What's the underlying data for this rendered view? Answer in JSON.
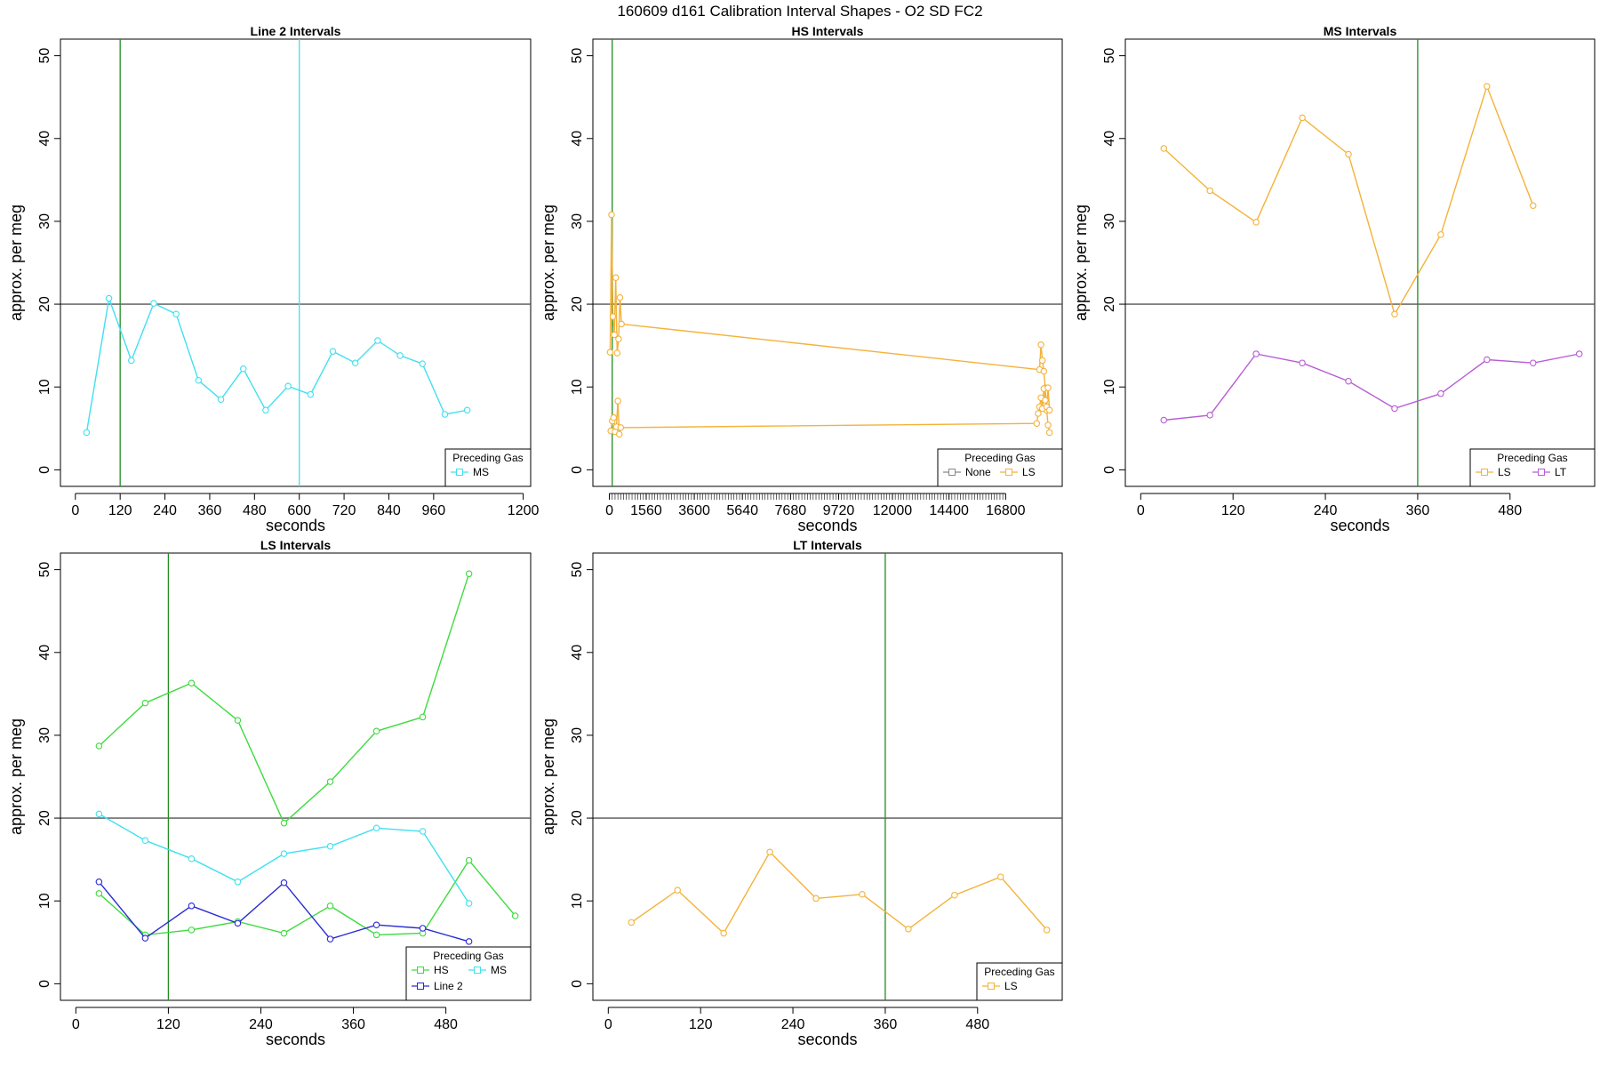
{
  "figure_title": "160609   d161   Calibration Interval Shapes - O2 SD FC2",
  "chart_data": [
    {
      "type": "line",
      "title": "Line 2 Intervals",
      "xlabel": "seconds",
      "ylabel": "approx. per meg",
      "xlim": [
        -40,
        1220
      ],
      "ylim": [
        -2,
        52
      ],
      "xticks": [
        0,
        120,
        240,
        360,
        480,
        600,
        720,
        840,
        960,
        1200
      ],
      "yticks": [
        0,
        10,
        20,
        30,
        40,
        50
      ],
      "hlines": [
        {
          "value": 20,
          "color": "#555555"
        }
      ],
      "vlines": [
        {
          "value": 120,
          "color": "#228B22"
        },
        {
          "value": 600,
          "color": "#40E0F0"
        }
      ],
      "legend": {
        "title": "Preceding Gas",
        "entries": [
          {
            "name": "MS",
            "color": "#40E0F0"
          }
        ]
      },
      "series": [
        {
          "name": "MS",
          "color": "#40E0F0",
          "points": [
            [
              30,
              4.5
            ],
            [
              90,
              20.7
            ],
            [
              150,
              13.2
            ],
            [
              210,
              20.1
            ],
            [
              270,
              18.8
            ],
            [
              330,
              10.8
            ],
            [
              390,
              8.5
            ],
            [
              450,
              12.2
            ],
            [
              510,
              7.2
            ],
            [
              570,
              10.1
            ],
            [
              630,
              9.1
            ],
            [
              690,
              14.3
            ],
            [
              750,
              12.9
            ],
            [
              810,
              15.6
            ],
            [
              870,
              13.8
            ],
            [
              930,
              12.8
            ],
            [
              990,
              6.7
            ],
            [
              1050,
              7.2
            ]
          ]
        }
      ]
    },
    {
      "type": "line",
      "title": "HS Intervals",
      "xlabel": "seconds",
      "ylabel": "approx. per meg",
      "xlim": [
        -700,
        19200
      ],
      "ylim": [
        -2,
        52
      ],
      "xticks": [
        0,
        1560,
        3600,
        5640,
        7680,
        9720,
        12000,
        14400,
        16800
      ],
      "minor_xtick_step": 120,
      "yticks": [
        0,
        10,
        20,
        30,
        40,
        50
      ],
      "hlines": [
        {
          "value": 20,
          "color": "#555555"
        }
      ],
      "vlines": [
        {
          "value": 120,
          "color": "#228B22"
        }
      ],
      "legend": {
        "title": "Preceding Gas",
        "entries": [
          {
            "name": "None",
            "color": "#888888"
          },
          {
            "name": "LS",
            "color": "#F4B23A"
          }
        ]
      },
      "series": [
        {
          "name": "LS",
          "color": "#F4B23A",
          "points": [
            [
              30,
              14.2
            ],
            [
              90,
              30.8
            ],
            [
              150,
              18.5
            ],
            [
              210,
              16.3
            ],
            [
              270,
              23.2
            ],
            [
              330,
              14.1
            ],
            [
              390,
              15.8
            ],
            [
              450,
              20.8
            ],
            [
              510,
              17.6
            ],
            [
              18240,
              12.1
            ],
            [
              18300,
              15.1
            ],
            [
              18360,
              13.2
            ],
            [
              18420,
              11.9
            ],
            [
              18480,
              9.9
            ],
            [
              18540,
              7.2
            ],
            [
              18600,
              5.4
            ],
            [
              18660,
              4.5
            ]
          ]
        },
        {
          "name": "LS",
          "color": "#F4B23A",
          "points": [
            [
              60,
              4.7
            ],
            [
              120,
              5.9
            ],
            [
              180,
              6.3
            ],
            [
              240,
              4.6
            ],
            [
              300,
              5.2
            ],
            [
              360,
              8.3
            ],
            [
              420,
              4.3
            ],
            [
              480,
              5.1
            ],
            [
              18120,
              5.6
            ],
            [
              18180,
              6.8
            ],
            [
              18240,
              7.6
            ],
            [
              18300,
              8.7
            ],
            [
              18360,
              7.4
            ],
            [
              18420,
              9.8
            ],
            [
              18480,
              8.4
            ],
            [
              18540,
              7.6
            ],
            [
              18600,
              9.9
            ],
            [
              18660,
              7.2
            ]
          ]
        }
      ]
    },
    {
      "type": "line",
      "title": "MS Intervals",
      "xlabel": "seconds",
      "ylabel": "approx. per meg",
      "xlim": [
        -20,
        590
      ],
      "ylim": [
        -2,
        52
      ],
      "xticks": [
        0,
        120,
        240,
        360,
        480
      ],
      "yticks": [
        0,
        10,
        20,
        30,
        40,
        50
      ],
      "hlines": [
        {
          "value": 20,
          "color": "#555555"
        }
      ],
      "vlines": [
        {
          "value": 360,
          "color": "#228B22"
        }
      ],
      "legend": {
        "title": "Preceding Gas",
        "entries": [
          {
            "name": "LS",
            "color": "#F4B23A"
          },
          {
            "name": "LT",
            "color": "#B85CD6"
          }
        ]
      },
      "series": [
        {
          "name": "LS",
          "color": "#F4B23A",
          "points": [
            [
              30,
              38.8
            ],
            [
              90,
              33.7
            ],
            [
              150,
              29.9
            ],
            [
              210,
              42.5
            ],
            [
              270,
              38.1
            ],
            [
              330,
              18.8
            ],
            [
              390,
              28.4
            ],
            [
              450,
              46.3
            ],
            [
              510,
              31.9
            ]
          ]
        },
        {
          "name": "LT",
          "color": "#B85CD6",
          "points": [
            [
              30,
              6.0
            ],
            [
              90,
              6.6
            ],
            [
              150,
              14.0
            ],
            [
              210,
              12.9
            ],
            [
              270,
              10.7
            ],
            [
              330,
              7.4
            ],
            [
              390,
              9.2
            ],
            [
              450,
              13.3
            ],
            [
              510,
              12.9
            ],
            [
              570,
              14.0
            ]
          ]
        }
      ]
    },
    {
      "type": "line",
      "title": "LS Intervals",
      "xlabel": "seconds",
      "ylabel": "approx. per meg",
      "xlim": [
        -20,
        590
      ],
      "ylim": [
        -2,
        52
      ],
      "xticks": [
        0,
        120,
        240,
        360,
        480
      ],
      "yticks": [
        0,
        10,
        20,
        30,
        40,
        50
      ],
      "hlines": [
        {
          "value": 20,
          "color": "#555555"
        }
      ],
      "vlines": [
        {
          "value": 120,
          "color": "#228B22"
        }
      ],
      "legend": {
        "title": "Preceding Gas",
        "columns": 2,
        "entries": [
          {
            "name": "HS",
            "color": "#3EDB3E"
          },
          {
            "name": "Line 2",
            "color": "#2B2BD6"
          },
          {
            "name": "MS",
            "color": "#40E0F0"
          }
        ]
      },
      "series": [
        {
          "name": "HS",
          "color": "#3EDB3E",
          "points": [
            [
              30,
              28.7
            ],
            [
              90,
              33.9
            ],
            [
              150,
              36.3
            ],
            [
              210,
              31.8
            ],
            [
              270,
              19.4
            ],
            [
              330,
              24.4
            ],
            [
              390,
              30.5
            ],
            [
              450,
              32.2
            ],
            [
              510,
              49.5
            ]
          ]
        },
        {
          "name": "HS",
          "color": "#3EDB3E",
          "points": [
            [
              30,
              10.9
            ],
            [
              90,
              5.9
            ],
            [
              150,
              6.5
            ],
            [
              210,
              7.5
            ],
            [
              270,
              6.1
            ],
            [
              330,
              9.4
            ],
            [
              390,
              5.9
            ],
            [
              450,
              6.1
            ],
            [
              510,
              14.9
            ],
            [
              570,
              8.2
            ]
          ]
        },
        {
          "name": "MS",
          "color": "#40E0F0",
          "points": [
            [
              30,
              20.5
            ],
            [
              90,
              17.3
            ],
            [
              150,
              15.1
            ],
            [
              210,
              12.3
            ],
            [
              270,
              15.7
            ],
            [
              330,
              16.6
            ],
            [
              390,
              18.8
            ],
            [
              450,
              18.4
            ],
            [
              510,
              9.7
            ]
          ]
        },
        {
          "name": "Line 2",
          "color": "#2B2BD6",
          "points": [
            [
              30,
              12.3
            ],
            [
              90,
              5.5
            ],
            [
              150,
              9.4
            ],
            [
              210,
              7.3
            ],
            [
              270,
              12.2
            ],
            [
              330,
              5.4
            ],
            [
              390,
              7.1
            ],
            [
              450,
              6.7
            ],
            [
              510,
              5.1
            ]
          ]
        }
      ]
    },
    {
      "type": "line",
      "title": "LT Intervals",
      "xlabel": "seconds",
      "ylabel": "approx. per meg",
      "xlim": [
        -20,
        590
      ],
      "ylim": [
        -2,
        52
      ],
      "xticks": [
        0,
        120,
        240,
        360,
        480
      ],
      "yticks": [
        0,
        10,
        20,
        30,
        40,
        50
      ],
      "hlines": [
        {
          "value": 20,
          "color": "#555555"
        }
      ],
      "vlines": [
        {
          "value": 360,
          "color": "#228B22"
        }
      ],
      "legend": {
        "title": "Preceding Gas",
        "entries": [
          {
            "name": "LS",
            "color": "#F4B23A"
          }
        ]
      },
      "series": [
        {
          "name": "LS",
          "color": "#F4B23A",
          "points": [
            [
              30,
              7.4
            ],
            [
              90,
              11.3
            ],
            [
              150,
              6.1
            ],
            [
              210,
              15.9
            ],
            [
              270,
              10.3
            ],
            [
              330,
              10.8
            ],
            [
              390,
              6.6
            ],
            [
              450,
              10.7
            ],
            [
              510,
              12.9
            ],
            [
              570,
              6.5
            ]
          ]
        }
      ]
    }
  ]
}
